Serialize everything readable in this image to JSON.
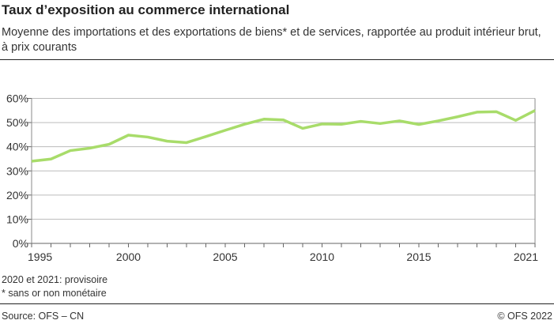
{
  "title": "Taux d’exposition au commerce international",
  "subtitle": "Moyenne des importations et des exportations de biens* et de services, rapportée au produit intérieur brut, à prix courants",
  "notes": [
    "2020 et 2021: provisoire",
    "* sans or non monétaire"
  ],
  "source": "Source: OFS – CN",
  "copyright": "© OFS 2022",
  "chart_data": {
    "type": "line",
    "title": "Taux d’exposition au commerce international",
    "xlabel": "",
    "ylabel": "",
    "x": [
      1995,
      1996,
      1997,
      1998,
      1999,
      2000,
      2001,
      2002,
      2003,
      2004,
      2005,
      2006,
      2007,
      2008,
      2009,
      2010,
      2011,
      2012,
      2013,
      2014,
      2015,
      2016,
      2017,
      2018,
      2019,
      2020,
      2021
    ],
    "series": [
      {
        "values": [
          34.0,
          34.9,
          38.4,
          39.4,
          41.0,
          44.8,
          44.0,
          42.3,
          41.7,
          44.2,
          46.8,
          49.3,
          51.4,
          51.1,
          47.6,
          49.4,
          49.3,
          50.5,
          49.6,
          50.7,
          49.2,
          50.7,
          52.4,
          54.3,
          54.5,
          50.9,
          55.0
        ],
        "color": "#a8dc6a"
      }
    ],
    "xlim": [
      1995,
      2021
    ],
    "ylim": [
      0,
      60
    ],
    "yticks": [
      "0%",
      "10%",
      "20%",
      "30%",
      "40%",
      "50%",
      "60%"
    ],
    "xticks": [
      "1995",
      "2000",
      "2005",
      "2010",
      "2015",
      "2021"
    ],
    "grid": true,
    "legend": "none"
  }
}
